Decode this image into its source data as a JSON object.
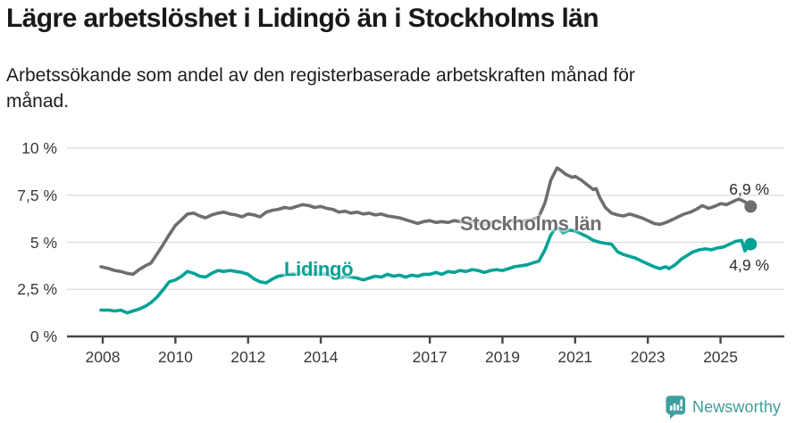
{
  "header": {
    "title": "Lägre arbetslöshet i Lidingö än i Stockholms län",
    "subtitle": "Arbetssökande som andel av den registerbaserade arbetskraften månad för\nmånad."
  },
  "footer": {
    "brand": "Newsworthy",
    "logo_icon": "bar-chart-speech-bubble-icon",
    "brand_color": "#3f9f9c"
  },
  "colors": {
    "stockholm_line": "#6e6e71",
    "lidingo_line": "#00a296",
    "gridline": "#dcdcdc",
    "axis": "#47474a",
    "tick_text": "#3a3a3a"
  },
  "chart_data": {
    "type": "line",
    "title": "Lägre arbetslöshet i Lidingö än i Stockholms län",
    "xlabel": "",
    "ylabel": "",
    "unit": "%",
    "grid": true,
    "ylim": [
      0,
      10
    ],
    "xlim": [
      2007,
      2027
    ],
    "y_ticks": [
      {
        "value": 0,
        "label": "0 %"
      },
      {
        "value": 2.5,
        "label": "2,5 %"
      },
      {
        "value": 5,
        "label": "5 %"
      },
      {
        "value": 7.5,
        "label": "7,5 %"
      },
      {
        "value": 10,
        "label": "10 %"
      }
    ],
    "x_ticks": [
      {
        "value": 2008,
        "label": "2008"
      },
      {
        "value": 2010,
        "label": "2010"
      },
      {
        "value": 2012,
        "label": "2012"
      },
      {
        "value": 2014,
        "label": "2014"
      },
      {
        "value": 2017,
        "label": "2017"
      },
      {
        "value": 2019,
        "label": "2019"
      },
      {
        "value": 2021,
        "label": "2021"
      },
      {
        "value": 2023,
        "label": "2023"
      },
      {
        "value": 2025,
        "label": "2025"
      }
    ],
    "series": [
      {
        "name": "Stockholms län",
        "color": "#6e6e71",
        "end_label": "6,9 %",
        "end_value": 6.9,
        "points": [
          [
            2007.95,
            3.7
          ],
          [
            2008.17,
            3.6
          ],
          [
            2008.33,
            3.5
          ],
          [
            2008.5,
            3.45
          ],
          [
            2008.67,
            3.35
          ],
          [
            2008.83,
            3.3
          ],
          [
            2009.0,
            3.55
          ],
          [
            2009.17,
            3.75
          ],
          [
            2009.33,
            3.9
          ],
          [
            2009.5,
            4.4
          ],
          [
            2009.67,
            4.9
          ],
          [
            2009.83,
            5.4
          ],
          [
            2010.0,
            5.9
          ],
          [
            2010.17,
            6.2
          ],
          [
            2010.33,
            6.5
          ],
          [
            2010.5,
            6.55
          ],
          [
            2010.67,
            6.4
          ],
          [
            2010.83,
            6.3
          ],
          [
            2011.0,
            6.45
          ],
          [
            2011.17,
            6.55
          ],
          [
            2011.33,
            6.6
          ],
          [
            2011.5,
            6.5
          ],
          [
            2011.67,
            6.45
          ],
          [
            2011.83,
            6.35
          ],
          [
            2012.0,
            6.5
          ],
          [
            2012.17,
            6.45
          ],
          [
            2012.33,
            6.35
          ],
          [
            2012.5,
            6.6
          ],
          [
            2012.67,
            6.7
          ],
          [
            2012.83,
            6.75
          ],
          [
            2013.0,
            6.85
          ],
          [
            2013.17,
            6.8
          ],
          [
            2013.33,
            6.9
          ],
          [
            2013.5,
            7.0
          ],
          [
            2013.67,
            6.95
          ],
          [
            2013.83,
            6.85
          ],
          [
            2014.0,
            6.9
          ],
          [
            2014.17,
            6.8
          ],
          [
            2014.33,
            6.75
          ],
          [
            2014.5,
            6.6
          ],
          [
            2014.67,
            6.65
          ],
          [
            2014.83,
            6.55
          ],
          [
            2015.0,
            6.6
          ],
          [
            2015.17,
            6.5
          ],
          [
            2015.33,
            6.55
          ],
          [
            2015.5,
            6.45
          ],
          [
            2015.67,
            6.5
          ],
          [
            2015.83,
            6.4
          ],
          [
            2016.0,
            6.35
          ],
          [
            2016.17,
            6.3
          ],
          [
            2016.33,
            6.2
          ],
          [
            2016.5,
            6.1
          ],
          [
            2016.67,
            6.0
          ],
          [
            2016.83,
            6.1
          ],
          [
            2017.0,
            6.15
          ],
          [
            2017.17,
            6.05
          ],
          [
            2017.33,
            6.1
          ],
          [
            2017.5,
            6.05
          ],
          [
            2017.67,
            6.15
          ],
          [
            2017.83,
            6.1
          ],
          [
            2018.0,
            6.05
          ],
          [
            2018.17,
            6.1
          ],
          [
            2018.33,
            6.0
          ],
          [
            2018.5,
            5.95
          ],
          [
            2018.67,
            6.05
          ],
          [
            2018.83,
            6.1
          ],
          [
            2019.0,
            6.05
          ],
          [
            2019.17,
            6.1
          ],
          [
            2019.33,
            6.15
          ],
          [
            2019.5,
            6.1
          ],
          [
            2019.67,
            6.15
          ],
          [
            2019.83,
            6.2
          ],
          [
            2020.0,
            6.35
          ],
          [
            2020.17,
            7.1
          ],
          [
            2020.33,
            8.3
          ],
          [
            2020.5,
            8.95
          ],
          [
            2020.58,
            8.85
          ],
          [
            2020.75,
            8.6
          ],
          [
            2020.92,
            8.45
          ],
          [
            2021.0,
            8.5
          ],
          [
            2021.17,
            8.3
          ],
          [
            2021.33,
            8.05
          ],
          [
            2021.5,
            7.8
          ],
          [
            2021.58,
            7.85
          ],
          [
            2021.67,
            7.4
          ],
          [
            2021.83,
            6.85
          ],
          [
            2022.0,
            6.55
          ],
          [
            2022.17,
            6.45
          ],
          [
            2022.33,
            6.4
          ],
          [
            2022.5,
            6.5
          ],
          [
            2022.67,
            6.4
          ],
          [
            2022.83,
            6.3
          ],
          [
            2023.0,
            6.15
          ],
          [
            2023.17,
            6.0
          ],
          [
            2023.33,
            5.95
          ],
          [
            2023.5,
            6.05
          ],
          [
            2023.67,
            6.2
          ],
          [
            2023.83,
            6.35
          ],
          [
            2024.0,
            6.5
          ],
          [
            2024.17,
            6.6
          ],
          [
            2024.33,
            6.75
          ],
          [
            2024.5,
            6.95
          ],
          [
            2024.67,
            6.8
          ],
          [
            2024.83,
            6.9
          ],
          [
            2025.0,
            7.05
          ],
          [
            2025.17,
            7.0
          ],
          [
            2025.33,
            7.15
          ],
          [
            2025.5,
            7.3
          ],
          [
            2025.67,
            7.15
          ],
          [
            2025.83,
            6.9
          ]
        ]
      },
      {
        "name": "Lidingö",
        "color": "#00a296",
        "end_label": "4,9 %",
        "end_value": 4.9,
        "points": [
          [
            2007.95,
            1.4
          ],
          [
            2008.17,
            1.4
          ],
          [
            2008.33,
            1.35
          ],
          [
            2008.5,
            1.4
          ],
          [
            2008.67,
            1.25
          ],
          [
            2008.83,
            1.35
          ],
          [
            2009.0,
            1.45
          ],
          [
            2009.17,
            1.6
          ],
          [
            2009.33,
            1.8
          ],
          [
            2009.5,
            2.1
          ],
          [
            2009.67,
            2.5
          ],
          [
            2009.83,
            2.9
          ],
          [
            2010.0,
            3.0
          ],
          [
            2010.17,
            3.2
          ],
          [
            2010.33,
            3.45
          ],
          [
            2010.5,
            3.35
          ],
          [
            2010.67,
            3.2
          ],
          [
            2010.83,
            3.15
          ],
          [
            2011.0,
            3.35
          ],
          [
            2011.17,
            3.5
          ],
          [
            2011.33,
            3.45
          ],
          [
            2011.5,
            3.5
          ],
          [
            2011.67,
            3.45
          ],
          [
            2011.83,
            3.4
          ],
          [
            2012.0,
            3.3
          ],
          [
            2012.17,
            3.05
          ],
          [
            2012.33,
            2.9
          ],
          [
            2012.5,
            2.85
          ],
          [
            2012.67,
            3.05
          ],
          [
            2012.83,
            3.2
          ],
          [
            2013.0,
            3.25
          ],
          [
            2013.17,
            3.35
          ],
          [
            2013.33,
            3.3
          ],
          [
            2013.5,
            3.45
          ],
          [
            2013.67,
            3.4
          ],
          [
            2013.83,
            3.3
          ],
          [
            2014.0,
            3.35
          ],
          [
            2014.17,
            3.3
          ],
          [
            2014.33,
            3.2
          ],
          [
            2014.5,
            3.1
          ],
          [
            2014.67,
            3.2
          ],
          [
            2014.83,
            3.15
          ],
          [
            2015.0,
            3.1
          ],
          [
            2015.17,
            3.0
          ],
          [
            2015.33,
            3.1
          ],
          [
            2015.5,
            3.2
          ],
          [
            2015.67,
            3.15
          ],
          [
            2015.83,
            3.3
          ],
          [
            2016.0,
            3.2
          ],
          [
            2016.17,
            3.25
          ],
          [
            2016.33,
            3.15
          ],
          [
            2016.5,
            3.25
          ],
          [
            2016.67,
            3.2
          ],
          [
            2016.83,
            3.3
          ],
          [
            2017.0,
            3.3
          ],
          [
            2017.17,
            3.4
          ],
          [
            2017.33,
            3.3
          ],
          [
            2017.5,
            3.45
          ],
          [
            2017.67,
            3.4
          ],
          [
            2017.83,
            3.5
          ],
          [
            2018.0,
            3.45
          ],
          [
            2018.17,
            3.55
          ],
          [
            2018.33,
            3.5
          ],
          [
            2018.5,
            3.4
          ],
          [
            2018.67,
            3.5
          ],
          [
            2018.83,
            3.55
          ],
          [
            2019.0,
            3.5
          ],
          [
            2019.17,
            3.6
          ],
          [
            2019.33,
            3.7
          ],
          [
            2019.5,
            3.75
          ],
          [
            2019.67,
            3.8
          ],
          [
            2019.83,
            3.9
          ],
          [
            2020.0,
            4.0
          ],
          [
            2020.17,
            4.6
          ],
          [
            2020.33,
            5.4
          ],
          [
            2020.5,
            5.85
          ],
          [
            2020.67,
            5.5
          ],
          [
            2020.83,
            5.65
          ],
          [
            2021.0,
            5.6
          ],
          [
            2021.17,
            5.45
          ],
          [
            2021.33,
            5.3
          ],
          [
            2021.5,
            5.1
          ],
          [
            2021.67,
            5.0
          ],
          [
            2021.83,
            4.95
          ],
          [
            2022.0,
            4.9
          ],
          [
            2022.17,
            4.5
          ],
          [
            2022.33,
            4.35
          ],
          [
            2022.5,
            4.25
          ],
          [
            2022.67,
            4.15
          ],
          [
            2022.83,
            4.0
          ],
          [
            2023.0,
            3.85
          ],
          [
            2023.17,
            3.7
          ],
          [
            2023.33,
            3.6
          ],
          [
            2023.5,
            3.7
          ],
          [
            2023.58,
            3.6
          ],
          [
            2023.75,
            3.8
          ],
          [
            2023.92,
            4.1
          ],
          [
            2024.08,
            4.3
          ],
          [
            2024.25,
            4.5
          ],
          [
            2024.42,
            4.6
          ],
          [
            2024.58,
            4.65
          ],
          [
            2024.75,
            4.6
          ],
          [
            2024.92,
            4.7
          ],
          [
            2025.08,
            4.75
          ],
          [
            2025.25,
            4.9
          ],
          [
            2025.42,
            5.05
          ],
          [
            2025.58,
            5.1
          ],
          [
            2025.67,
            4.55
          ],
          [
            2025.83,
            4.9
          ]
        ]
      }
    ]
  }
}
